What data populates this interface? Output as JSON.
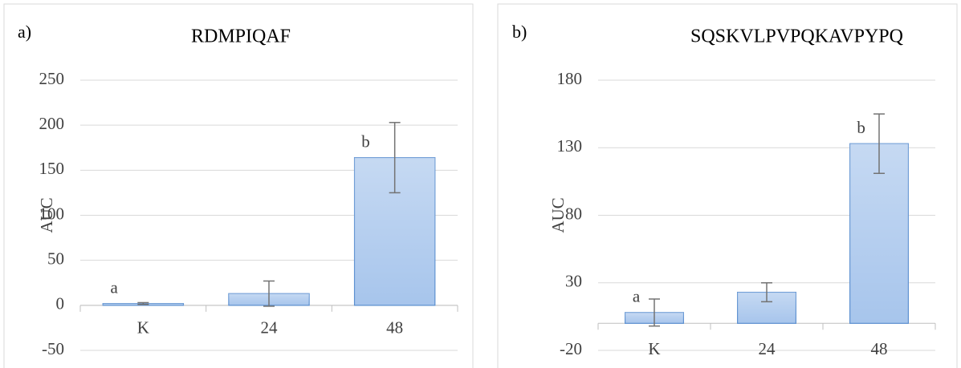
{
  "chart_data": [
    {
      "type": "bar",
      "panel_label": "a)",
      "title": "RDMPIQAF",
      "y_label": "AUC",
      "categories": [
        "K",
        "24",
        "48"
      ],
      "values": [
        2,
        13,
        164
      ],
      "errors": [
        1,
        14,
        39
      ],
      "letters": [
        "a",
        null,
        "b"
      ],
      "color": "#a7c5ec",
      "ylim": [
        -50,
        250
      ],
      "yticks": [
        -50,
        0,
        50,
        100,
        150,
        200,
        250
      ],
      "grid": true
    },
    {
      "type": "bar",
      "panel_label": "b)",
      "title": "SQSKVLPVPQKAVPYPQ",
      "y_label": "AUC",
      "categories": [
        "K",
        "24",
        "48"
      ],
      "values": [
        8,
        23,
        133
      ],
      "errors": [
        10,
        7,
        22
      ],
      "letters": [
        "a",
        null,
        "b"
      ],
      "color": "#a7c5ec",
      "ylim": [
        -20,
        180
      ],
      "yticks": [
        -20,
        30,
        80,
        130,
        180
      ],
      "grid": true
    }
  ]
}
